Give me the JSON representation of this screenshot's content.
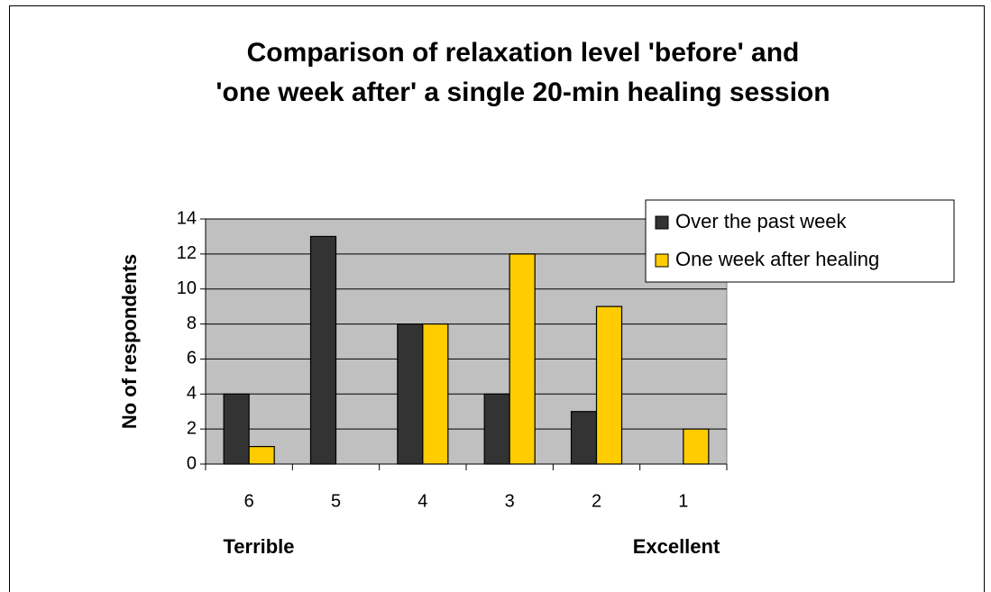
{
  "chart_data": {
    "type": "bar",
    "title": [
      "Comparison of relaxation level 'before' and",
      "'one week after' a single 20-min healing session"
    ],
    "y_label": "No of respondents",
    "annotations": [
      "Terrible",
      "Excellent"
    ],
    "categories": [
      "6",
      "5",
      "4",
      "3",
      "2",
      "1"
    ],
    "series": [
      {
        "name": "Over the past week",
        "color": "#333333",
        "values": [
          4,
          13,
          8,
          4,
          3,
          0
        ]
      },
      {
        "name": "One week after healing",
        "color": "#ffcc00",
        "values": [
          1,
          0,
          8,
          12,
          9,
          2
        ]
      }
    ],
    "ylim": [
      0,
      14
    ],
    "yticks": [
      0,
      2,
      4,
      6,
      8,
      10,
      12,
      14
    ],
    "grid": true,
    "plot_background": "#c0c0c0",
    "legend": "top-right"
  }
}
